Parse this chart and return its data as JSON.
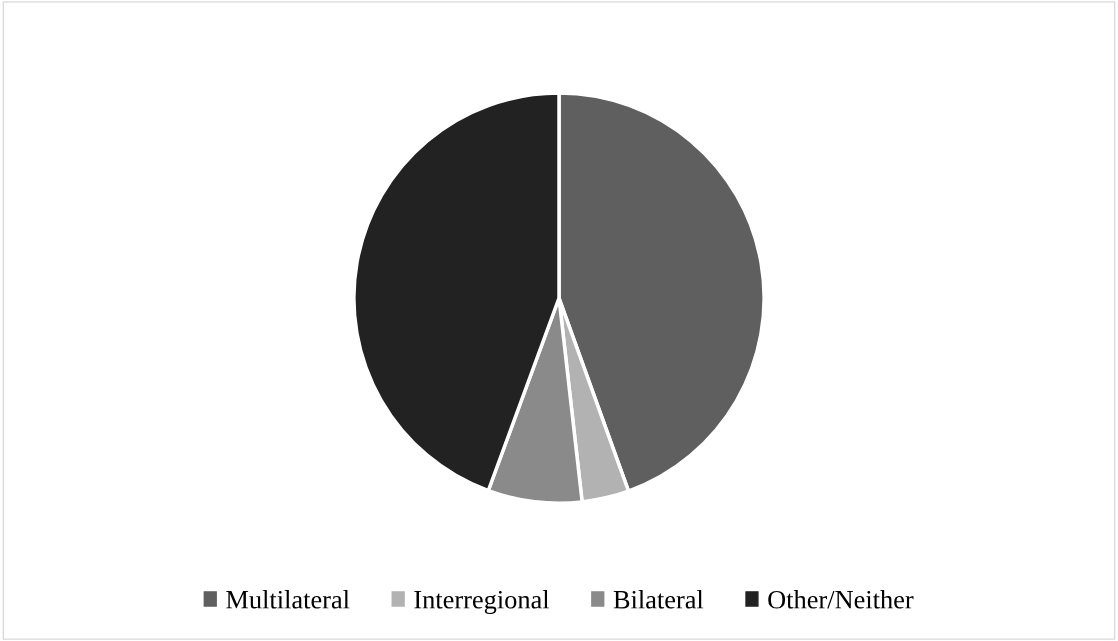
{
  "chart_data": {
    "type": "pie",
    "categories": [
      "Multilateral",
      "Interregional",
      "Bilateral",
      "Other/Neither"
    ],
    "values": [
      44.5,
      3.7,
      7.4,
      44.4
    ],
    "colors": [
      "#5f5f5f",
      "#b2b2b2",
      "#8a8a8a",
      "#222222"
    ],
    "legend": "bottom"
  }
}
